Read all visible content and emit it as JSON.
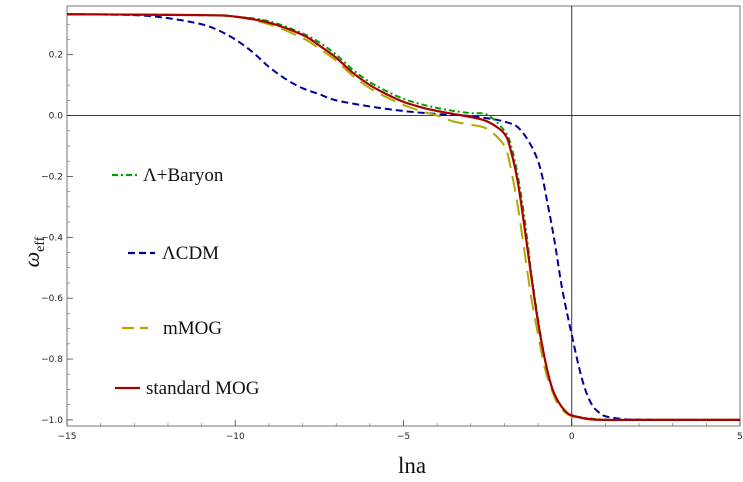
{
  "chart_data": {
    "type": "line",
    "xlabel": "lna",
    "ylabel_main": "ω",
    "ylabel_sub": "eff",
    "xlim": [
      -15,
      5
    ],
    "ylim": [
      -1.02,
      0.36
    ],
    "xticks": [
      -15,
      -10,
      -5,
      0,
      5
    ],
    "xtick_labels": [
      "−15",
      "−10",
      "−5",
      "0",
      "5"
    ],
    "yticks": [
      -1.0,
      -0.8,
      -0.6,
      -0.4,
      -0.2,
      0.0,
      0.2
    ],
    "ytick_labels": [
      "−1.0",
      "−0.8",
      "−0.6",
      "−0.4",
      "−0.2",
      "0.0",
      "0.2"
    ],
    "grid": false,
    "legend_position": "left",
    "series": [
      {
        "name": "Λ+Baryon",
        "color": "#00a000",
        "style": "dash-dot",
        "x": [
          -15,
          -11,
          -10,
          -9,
          -8,
          -7.5,
          -7,
          -6.5,
          -6,
          -5.5,
          -5,
          -4.5,
          -4,
          -3.5,
          -3,
          -2.5,
          -2,
          -1.8,
          -1.6,
          -1.4,
          -1.2,
          -1,
          -0.8,
          -0.6,
          -0.4,
          -0.2,
          0,
          0.5,
          1,
          1.5,
          2,
          3,
          5
        ],
        "y": [
          0.333,
          0.33,
          0.325,
          0.31,
          0.27,
          0.24,
          0.2,
          0.15,
          0.11,
          0.08,
          0.055,
          0.038,
          0.025,
          0.015,
          0.008,
          0.002,
          -0.05,
          -0.1,
          -0.2,
          -0.34,
          -0.52,
          -0.67,
          -0.8,
          -0.89,
          -0.94,
          -0.97,
          -0.985,
          -0.995,
          -0.999,
          -1.0,
          -1.0,
          -1.0,
          -1.0
        ]
      },
      {
        "name": "ΛCDM",
        "color": "#000099",
        "style": "dashed",
        "x": [
          -15,
          -13,
          -12,
          -11,
          -10.5,
          -10,
          -9.5,
          -9,
          -8.5,
          -8,
          -7.5,
          -7,
          -6,
          -5,
          -4,
          -3,
          -2,
          -1.5,
          -1,
          -0.7,
          -0.5,
          -0.3,
          -0.1,
          0,
          0.2,
          0.4,
          0.6,
          0.8,
          1,
          1.5,
          2,
          3,
          5
        ],
        "y": [
          0.333,
          0.33,
          0.32,
          0.3,
          0.28,
          0.25,
          0.21,
          0.16,
          0.12,
          0.09,
          0.07,
          0.05,
          0.03,
          0.015,
          0.005,
          -0.002,
          -0.02,
          -0.05,
          -0.15,
          -0.3,
          -0.42,
          -0.56,
          -0.67,
          -0.72,
          -0.82,
          -0.9,
          -0.95,
          -0.975,
          -0.988,
          -0.997,
          -0.999,
          -1.0,
          -1.0
        ]
      },
      {
        "name": "mMOG",
        "color": "#b3a800",
        "style": "long-dash",
        "x": [
          -15,
          -11,
          -10,
          -9,
          -8,
          -7.5,
          -7,
          -6.5,
          -6,
          -5.5,
          -5,
          -4.5,
          -4,
          -3.5,
          -3,
          -2.5,
          -2,
          -1.8,
          -1.6,
          -1.4,
          -1.2,
          -1,
          -0.8,
          -0.6,
          -0.4,
          -0.2,
          0,
          0.5,
          1,
          2,
          5
        ],
        "y": [
          0.333,
          0.33,
          0.325,
          0.3,
          0.255,
          0.22,
          0.18,
          0.13,
          0.09,
          0.06,
          0.035,
          0.015,
          0.0,
          -0.02,
          -0.03,
          -0.045,
          -0.1,
          -0.18,
          -0.3,
          -0.45,
          -0.6,
          -0.72,
          -0.83,
          -0.9,
          -0.95,
          -0.975,
          -0.988,
          -0.998,
          -1.0,
          -1.0,
          -1.0
        ]
      },
      {
        "name": "standard MOG",
        "color": "#aa0000",
        "style": "solid",
        "x": [
          -15,
          -11,
          -10,
          -9,
          -8,
          -7.5,
          -7,
          -6.5,
          -6,
          -5.5,
          -5,
          -4.5,
          -4,
          -3.5,
          -3,
          -2.5,
          -2,
          -1.8,
          -1.6,
          -1.4,
          -1.2,
          -1,
          -0.8,
          -0.6,
          -0.4,
          -0.2,
          0,
          0.5,
          1,
          2,
          5
        ],
        "y": [
          0.333,
          0.33,
          0.325,
          0.305,
          0.265,
          0.23,
          0.19,
          0.14,
          0.1,
          0.07,
          0.045,
          0.028,
          0.015,
          0.005,
          -0.005,
          -0.02,
          -0.06,
          -0.12,
          -0.22,
          -0.37,
          -0.53,
          -0.68,
          -0.8,
          -0.89,
          -0.94,
          -0.97,
          -0.985,
          -0.997,
          -1.0,
          -1.0,
          -1.0
        ]
      }
    ],
    "legend": [
      {
        "label": "Λ+Baryon",
        "series": 0
      },
      {
        "label": "ΛCDM",
        "series": 1
      },
      {
        "label": "mMOG",
        "series": 2
      },
      {
        "label": "standard MOG",
        "series": 3
      }
    ]
  }
}
